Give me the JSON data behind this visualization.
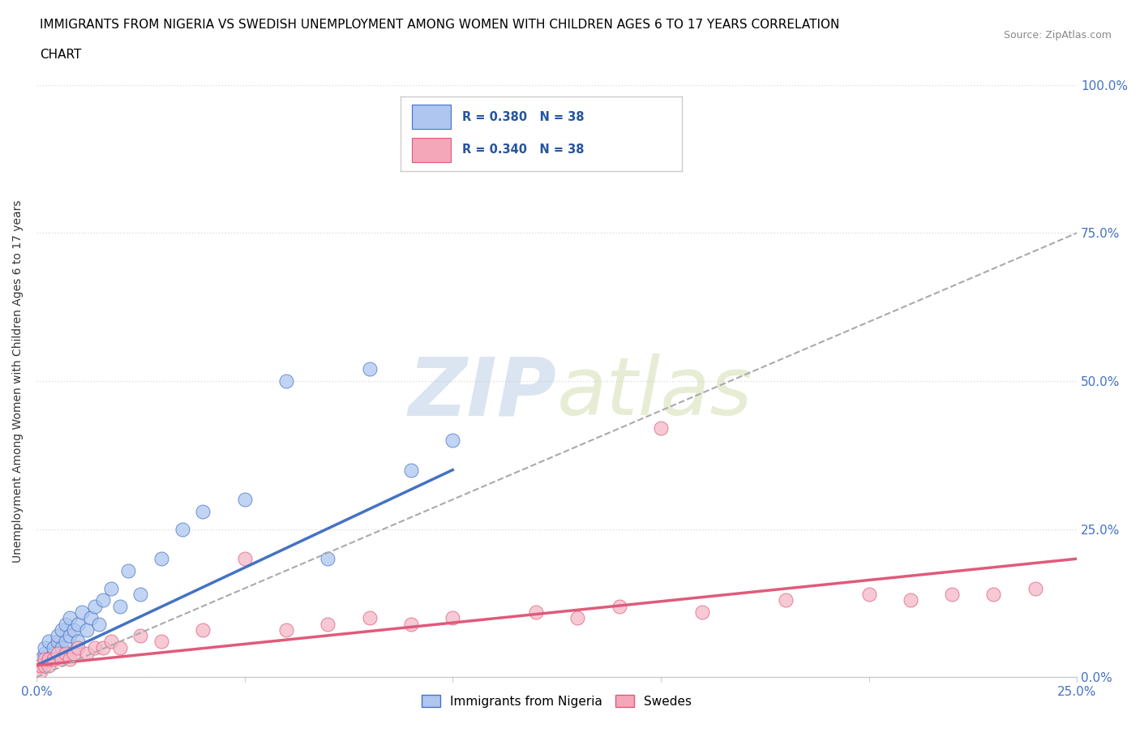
{
  "title_line1": "IMMIGRANTS FROM NIGERIA VS SWEDISH UNEMPLOYMENT AMONG WOMEN WITH CHILDREN AGES 6 TO 17 YEARS CORRELATION",
  "title_line2": "CHART",
  "source_text": "Source: ZipAtlas.com",
  "ylabel": "Unemployment Among Women with Children Ages 6 to 17 years",
  "xlim": [
    0.0,
    0.25
  ],
  "ylim": [
    0.0,
    1.0
  ],
  "y_tick_labels_right": [
    "0.0%",
    "25.0%",
    "50.0%",
    "75.0%",
    "100.0%"
  ],
  "y_ticks_right": [
    0.0,
    0.25,
    0.5,
    0.75,
    1.0
  ],
  "legend_color1": "#aec6f0",
  "legend_color2": "#f4a7b9",
  "scatter_color_nigeria": "#aec6f0",
  "scatter_color_swedes": "#f4b8c8",
  "trendline_color_nigeria": "#4472c4",
  "trendline_color_swedes": "#e05a7a",
  "trendline_dashed_color": "#aaaaaa",
  "watermark_text": "ZIPatlas",
  "nigeria_x": [
    0.001,
    0.001,
    0.002,
    0.002,
    0.003,
    0.003,
    0.004,
    0.004,
    0.005,
    0.005,
    0.006,
    0.006,
    0.007,
    0.007,
    0.008,
    0.008,
    0.009,
    0.01,
    0.01,
    0.011,
    0.012,
    0.013,
    0.014,
    0.015,
    0.016,
    0.018,
    0.02,
    0.022,
    0.025,
    0.03,
    0.035,
    0.04,
    0.05,
    0.06,
    0.07,
    0.08,
    0.09,
    0.1
  ],
  "nigeria_y": [
    0.02,
    0.03,
    0.04,
    0.05,
    0.03,
    0.06,
    0.04,
    0.05,
    0.06,
    0.07,
    0.05,
    0.08,
    0.06,
    0.09,
    0.07,
    0.1,
    0.08,
    0.06,
    0.09,
    0.11,
    0.08,
    0.1,
    0.12,
    0.09,
    0.13,
    0.15,
    0.12,
    0.18,
    0.14,
    0.2,
    0.25,
    0.28,
    0.3,
    0.5,
    0.2,
    0.52,
    0.35,
    0.4
  ],
  "swedes_x": [
    0.001,
    0.001,
    0.002,
    0.002,
    0.003,
    0.003,
    0.004,
    0.005,
    0.006,
    0.007,
    0.008,
    0.009,
    0.01,
    0.012,
    0.014,
    0.016,
    0.018,
    0.02,
    0.025,
    0.03,
    0.04,
    0.05,
    0.06,
    0.07,
    0.08,
    0.09,
    0.1,
    0.12,
    0.13,
    0.14,
    0.15,
    0.16,
    0.18,
    0.2,
    0.21,
    0.22,
    0.23,
    0.24
  ],
  "swedes_y": [
    0.01,
    0.02,
    0.02,
    0.03,
    0.02,
    0.03,
    0.03,
    0.04,
    0.03,
    0.04,
    0.03,
    0.04,
    0.05,
    0.04,
    0.05,
    0.05,
    0.06,
    0.05,
    0.07,
    0.06,
    0.08,
    0.2,
    0.08,
    0.09,
    0.1,
    0.09,
    0.1,
    0.11,
    0.1,
    0.12,
    0.42,
    0.11,
    0.13,
    0.14,
    0.13,
    0.14,
    0.14,
    0.15
  ],
  "nigeria_trend_x": [
    0.0,
    0.1
  ],
  "nigeria_trend_y": [
    0.02,
    0.35
  ],
  "swedes_trend_x": [
    0.0,
    0.25
  ],
  "swedes_trend_y": [
    0.02,
    0.2
  ],
  "dashed_trend_x": [
    0.0,
    0.25
  ],
  "dashed_trend_y": [
    0.0,
    0.75
  ],
  "background_color": "#ffffff",
  "plot_bg_color": "#ffffff",
  "grid_color": "#dddddd"
}
